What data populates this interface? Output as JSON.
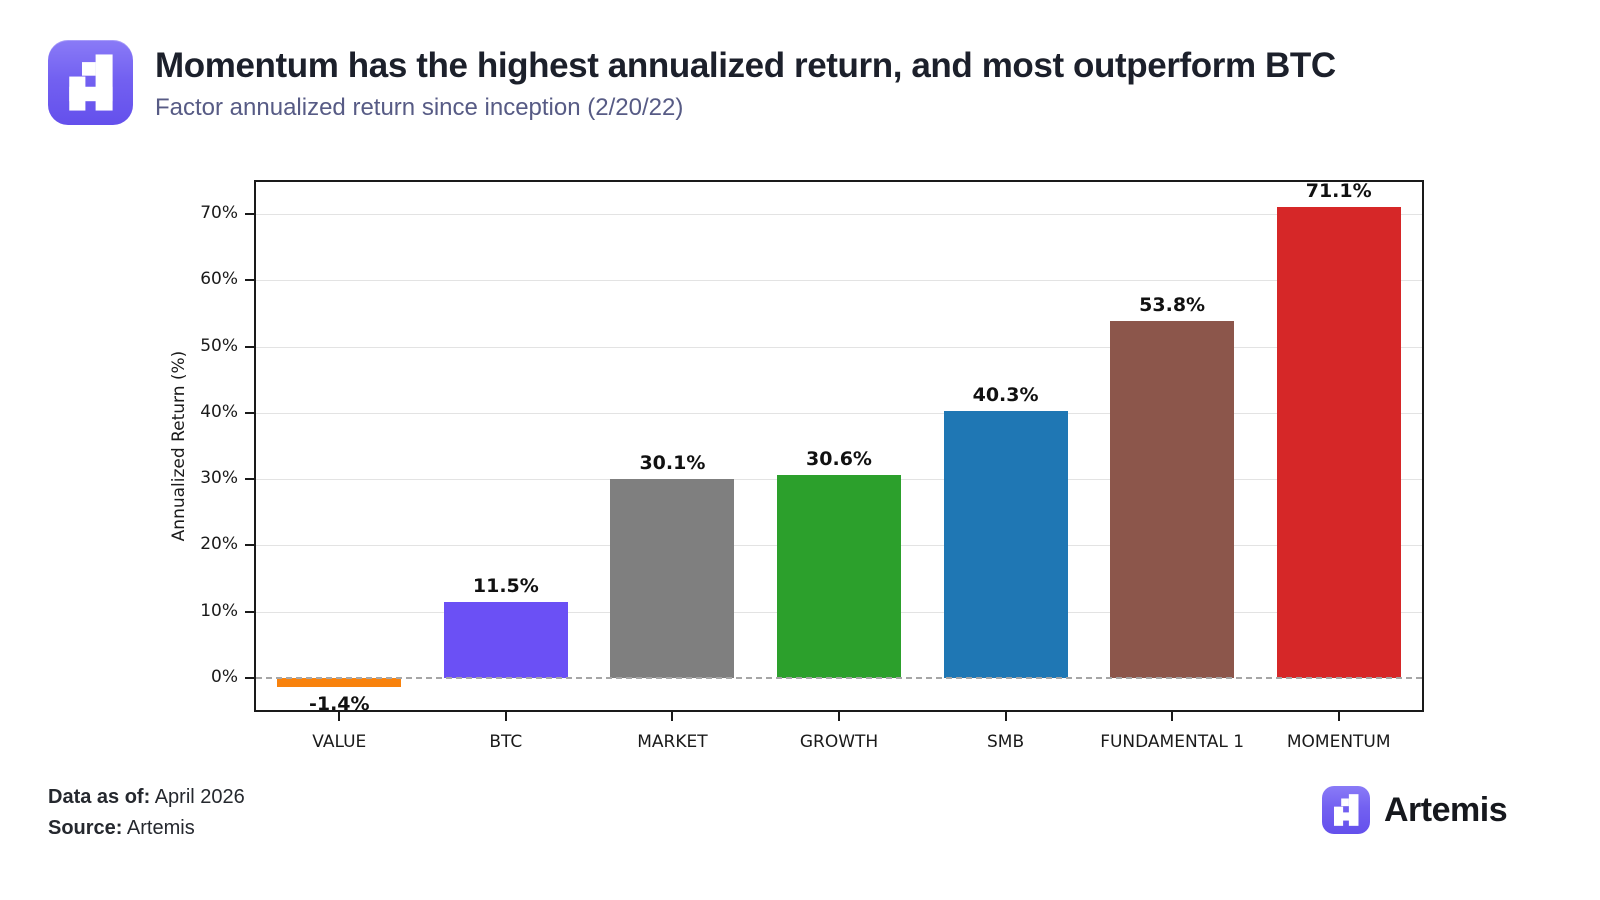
{
  "header": {
    "title": "Momentum has the highest annualized return, and most outperform BTC",
    "subtitle": "Factor annualized return since inception (2/20/22)"
  },
  "branding": {
    "logo_icon": "artemis-pixel-a",
    "wordmark": "Artemis",
    "logo_color_top": "#8a7bf7",
    "logo_color_bottom": "#6450ec"
  },
  "chart_data": {
    "type": "bar",
    "title": "Factor annualized return since inception (2/20/22)",
    "categories": [
      "VALUE",
      "BTC",
      "MARKET",
      "GROWTH",
      "SMB",
      "FUNDAMENTAL 1",
      "MOMENTUM"
    ],
    "values": [
      -1.4,
      11.5,
      30.1,
      30.6,
      40.3,
      53.8,
      71.1
    ],
    "value_labels": [
      "-1.4%",
      "11.5%",
      "30.1%",
      "30.6%",
      "40.3%",
      "53.8%",
      "71.1%"
    ],
    "bar_colors": [
      "#f8820d",
      "#6b50f5",
      "#7f7f7f",
      "#2ca02c",
      "#1f77b4",
      "#8c564b",
      "#d62728"
    ],
    "xlabel": "",
    "ylabel": "Annualized Return (%)",
    "y_ticks": [
      0,
      10,
      20,
      30,
      40,
      50,
      60,
      70
    ],
    "y_tick_labels": [
      "0%",
      "10%",
      "20%",
      "30%",
      "40%",
      "50%",
      "60%",
      "70%"
    ],
    "ylim": [
      -4.8,
      74.8
    ],
    "grid": true,
    "gridline_color": "#e3e3e3",
    "zero_line_style": "dashed",
    "zero_line_color": "#a6a6a6",
    "legend": false
  },
  "footer": {
    "data_as_of_label": "Data as of:",
    "data_as_of_value": "April 2026",
    "source_label": "Source:",
    "source_value": "Artemis"
  }
}
